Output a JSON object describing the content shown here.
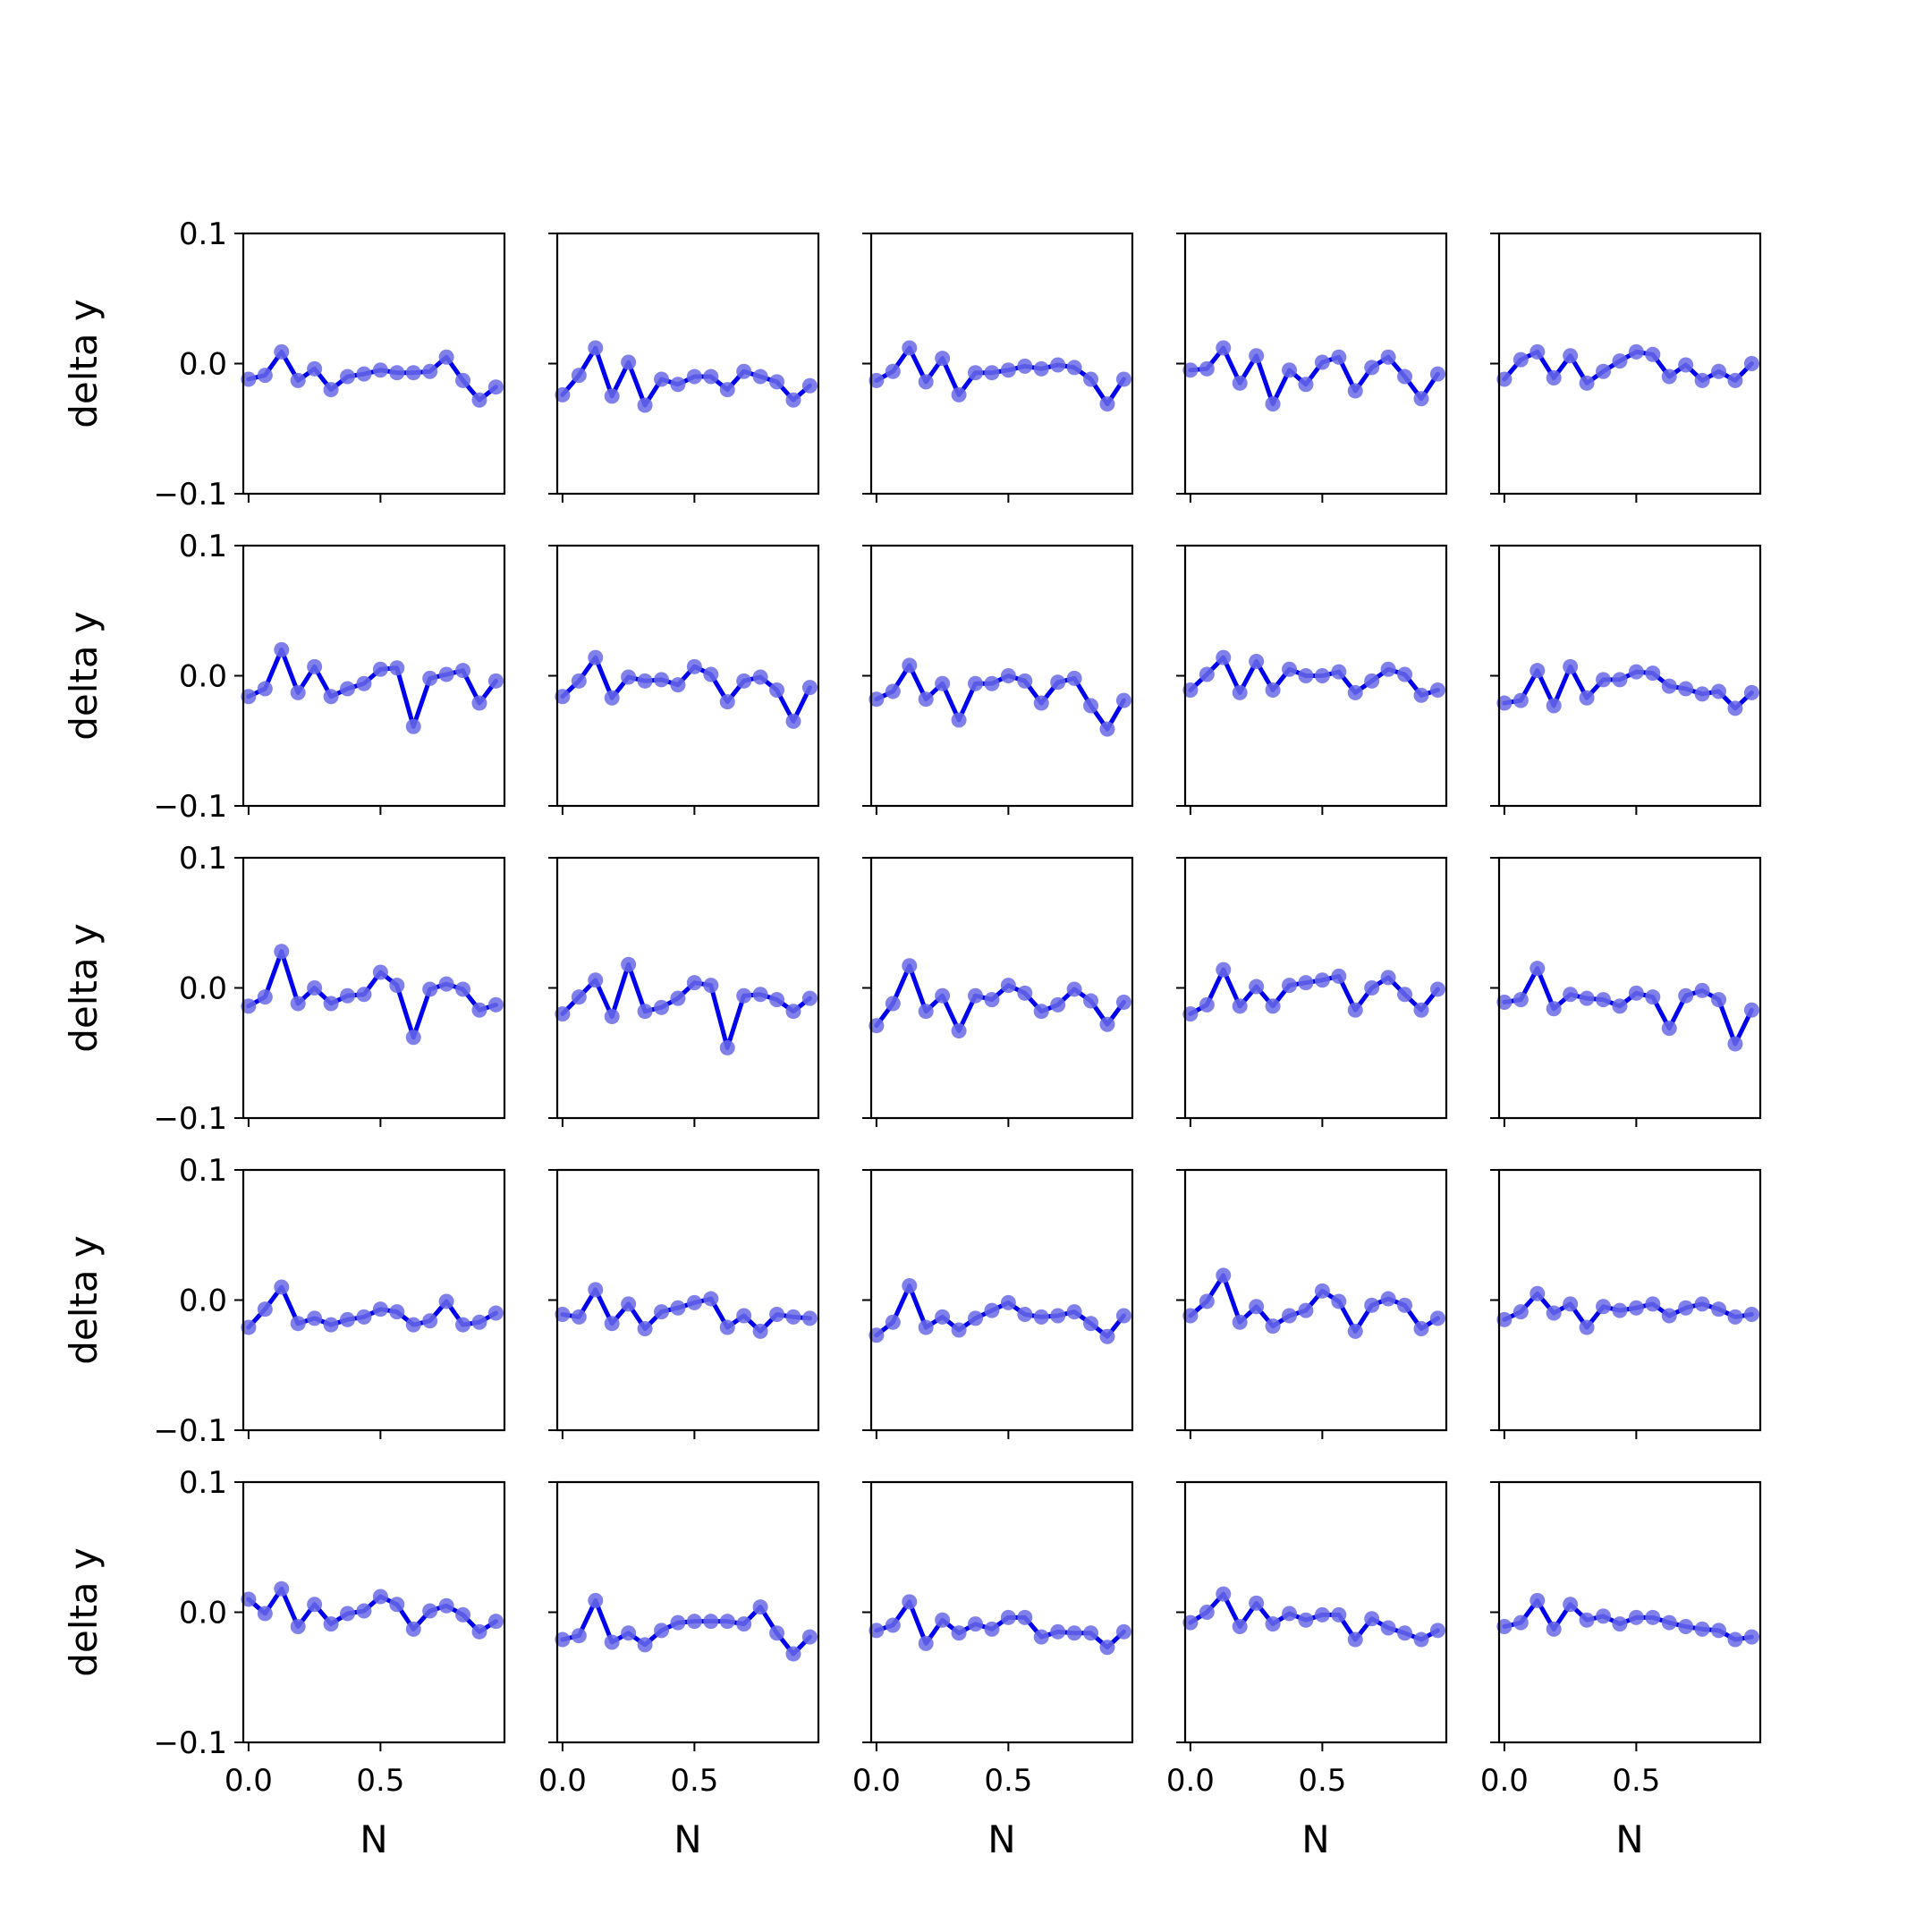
{
  "figure": {
    "xlabel": "N",
    "ylabel": "delta y",
    "line_color": "#0000ee",
    "marker_color": "#6a6ae6",
    "axis_color": "#000000"
  },
  "chart_data": {
    "type": "line",
    "grid": false,
    "layout": {
      "rows": 5,
      "cols": 5,
      "sharex": true,
      "sharey": true
    },
    "xlabel": "N",
    "ylabel": "delta y",
    "xlim": [
      -0.02,
      0.97
    ],
    "ylim": [
      -0.1,
      0.1
    ],
    "xticks": [
      0.0,
      0.5
    ],
    "xtick_labels": [
      "0.0",
      "0.5"
    ],
    "yticks": [
      0.1,
      0.0,
      -0.1
    ],
    "ytick_labels": [
      "0.1",
      "0.0",
      "−0.1"
    ],
    "x": [
      0.0,
      0.0625,
      0.125,
      0.1875,
      0.25,
      0.3125,
      0.375,
      0.4375,
      0.5,
      0.5625,
      0.625,
      0.6875,
      0.75,
      0.8125,
      0.875,
      0.9375
    ],
    "panels": [
      {
        "row": 1,
        "col": 1,
        "values": [
          -0.012,
          -0.009,
          0.009,
          -0.013,
          -0.004,
          -0.02,
          -0.01,
          -0.008,
          -0.005,
          -0.007,
          -0.007,
          -0.006,
          0.005,
          -0.013,
          -0.028,
          -0.018
        ]
      },
      {
        "row": 1,
        "col": 2,
        "values": [
          -0.024,
          -0.009,
          0.012,
          -0.025,
          0.001,
          -0.032,
          -0.012,
          -0.016,
          -0.01,
          -0.01,
          -0.02,
          -0.006,
          -0.01,
          -0.014,
          -0.028,
          -0.017
        ]
      },
      {
        "row": 1,
        "col": 3,
        "values": [
          -0.013,
          -0.006,
          0.012,
          -0.014,
          0.004,
          -0.024,
          -0.007,
          -0.007,
          -0.005,
          -0.002,
          -0.004,
          -0.001,
          -0.003,
          -0.012,
          -0.031,
          -0.012
        ]
      },
      {
        "row": 1,
        "col": 4,
        "values": [
          -0.005,
          -0.004,
          0.012,
          -0.015,
          0.006,
          -0.031,
          -0.005,
          -0.016,
          0.001,
          0.005,
          -0.021,
          -0.003,
          0.005,
          -0.01,
          -0.027,
          -0.008
        ]
      },
      {
        "row": 1,
        "col": 5,
        "values": [
          -0.012,
          0.003,
          0.009,
          -0.011,
          0.006,
          -0.015,
          -0.006,
          0.002,
          0.009,
          0.007,
          -0.01,
          -0.001,
          -0.013,
          -0.006,
          -0.013,
          0.0
        ]
      },
      {
        "row": 2,
        "col": 1,
        "values": [
          -0.016,
          -0.01,
          0.02,
          -0.013,
          0.007,
          -0.016,
          -0.01,
          -0.006,
          0.005,
          0.006,
          -0.039,
          -0.002,
          0.001,
          0.004,
          -0.021,
          -0.004
        ]
      },
      {
        "row": 2,
        "col": 2,
        "values": [
          -0.016,
          -0.004,
          0.014,
          -0.017,
          -0.001,
          -0.004,
          -0.003,
          -0.007,
          0.007,
          0.001,
          -0.02,
          -0.004,
          -0.001,
          -0.011,
          -0.035,
          -0.009
        ]
      },
      {
        "row": 2,
        "col": 3,
        "values": [
          -0.018,
          -0.012,
          0.008,
          -0.018,
          -0.006,
          -0.034,
          -0.006,
          -0.006,
          0.0,
          -0.004,
          -0.021,
          -0.005,
          -0.002,
          -0.023,
          -0.041,
          -0.019
        ]
      },
      {
        "row": 2,
        "col": 4,
        "values": [
          -0.011,
          0.001,
          0.014,
          -0.013,
          0.011,
          -0.011,
          0.005,
          0.0,
          0.0,
          0.003,
          -0.013,
          -0.004,
          0.005,
          0.001,
          -0.015,
          -0.011
        ]
      },
      {
        "row": 2,
        "col": 5,
        "values": [
          -0.021,
          -0.019,
          0.004,
          -0.023,
          0.007,
          -0.017,
          -0.003,
          -0.003,
          0.003,
          0.002,
          -0.008,
          -0.01,
          -0.014,
          -0.012,
          -0.025,
          -0.013
        ]
      },
      {
        "row": 3,
        "col": 1,
        "values": [
          -0.014,
          -0.007,
          0.028,
          -0.012,
          0.0,
          -0.012,
          -0.006,
          -0.005,
          0.012,
          0.002,
          -0.038,
          -0.001,
          0.003,
          -0.001,
          -0.017,
          -0.013
        ]
      },
      {
        "row": 3,
        "col": 2,
        "values": [
          -0.02,
          -0.007,
          0.006,
          -0.022,
          0.018,
          -0.018,
          -0.015,
          -0.008,
          0.004,
          0.002,
          -0.046,
          -0.006,
          -0.005,
          -0.009,
          -0.018,
          -0.008
        ]
      },
      {
        "row": 3,
        "col": 3,
        "values": [
          -0.029,
          -0.012,
          0.017,
          -0.018,
          -0.006,
          -0.033,
          -0.006,
          -0.009,
          0.002,
          -0.004,
          -0.018,
          -0.013,
          -0.001,
          -0.01,
          -0.028,
          -0.011
        ]
      },
      {
        "row": 3,
        "col": 4,
        "values": [
          -0.02,
          -0.013,
          0.014,
          -0.014,
          0.001,
          -0.014,
          0.002,
          0.004,
          0.006,
          0.009,
          -0.017,
          0.0,
          0.008,
          -0.005,
          -0.017,
          -0.001
        ]
      },
      {
        "row": 3,
        "col": 5,
        "values": [
          -0.011,
          -0.009,
          0.015,
          -0.016,
          -0.005,
          -0.008,
          -0.009,
          -0.014,
          -0.004,
          -0.007,
          -0.031,
          -0.006,
          -0.002,
          -0.009,
          -0.043,
          -0.017
        ]
      },
      {
        "row": 4,
        "col": 1,
        "values": [
          -0.021,
          -0.007,
          0.01,
          -0.018,
          -0.014,
          -0.019,
          -0.015,
          -0.013,
          -0.007,
          -0.009,
          -0.019,
          -0.016,
          -0.001,
          -0.019,
          -0.017,
          -0.01
        ]
      },
      {
        "row": 4,
        "col": 2,
        "values": [
          -0.011,
          -0.013,
          0.008,
          -0.018,
          -0.003,
          -0.022,
          -0.009,
          -0.006,
          -0.002,
          0.001,
          -0.021,
          -0.012,
          -0.024,
          -0.011,
          -0.013,
          -0.014
        ]
      },
      {
        "row": 4,
        "col": 3,
        "values": [
          -0.027,
          -0.017,
          0.011,
          -0.021,
          -0.013,
          -0.023,
          -0.014,
          -0.008,
          -0.002,
          -0.011,
          -0.013,
          -0.012,
          -0.009,
          -0.018,
          -0.028,
          -0.012
        ]
      },
      {
        "row": 4,
        "col": 4,
        "values": [
          -0.012,
          -0.001,
          0.019,
          -0.017,
          -0.005,
          -0.02,
          -0.012,
          -0.008,
          0.007,
          -0.001,
          -0.024,
          -0.004,
          0.001,
          -0.004,
          -0.022,
          -0.014
        ]
      },
      {
        "row": 4,
        "col": 5,
        "values": [
          -0.015,
          -0.009,
          0.005,
          -0.01,
          -0.003,
          -0.021,
          -0.005,
          -0.008,
          -0.006,
          -0.003,
          -0.012,
          -0.006,
          -0.003,
          -0.007,
          -0.013,
          -0.011
        ]
      },
      {
        "row": 5,
        "col": 1,
        "values": [
          0.01,
          -0.001,
          0.018,
          -0.011,
          0.006,
          -0.009,
          -0.001,
          0.001,
          0.012,
          0.006,
          -0.013,
          0.001,
          0.005,
          -0.002,
          -0.015,
          -0.007
        ]
      },
      {
        "row": 5,
        "col": 2,
        "values": [
          -0.021,
          -0.018,
          0.009,
          -0.023,
          -0.016,
          -0.025,
          -0.014,
          -0.008,
          -0.007,
          -0.007,
          -0.007,
          -0.009,
          0.004,
          -0.016,
          -0.032,
          -0.019
        ]
      },
      {
        "row": 5,
        "col": 3,
        "values": [
          -0.014,
          -0.01,
          0.008,
          -0.024,
          -0.006,
          -0.016,
          -0.009,
          -0.013,
          -0.004,
          -0.004,
          -0.019,
          -0.015,
          -0.016,
          -0.016,
          -0.027,
          -0.015
        ]
      },
      {
        "row": 5,
        "col": 4,
        "values": [
          -0.008,
          0.0,
          0.014,
          -0.011,
          0.007,
          -0.009,
          -0.001,
          -0.006,
          -0.002,
          -0.002,
          -0.021,
          -0.005,
          -0.012,
          -0.016,
          -0.021,
          -0.014
        ]
      },
      {
        "row": 5,
        "col": 5,
        "values": [
          -0.011,
          -0.008,
          0.009,
          -0.013,
          0.006,
          -0.006,
          -0.003,
          -0.009,
          -0.004,
          -0.004,
          -0.008,
          -0.011,
          -0.013,
          -0.014,
          -0.021,
          -0.019
        ]
      }
    ]
  }
}
